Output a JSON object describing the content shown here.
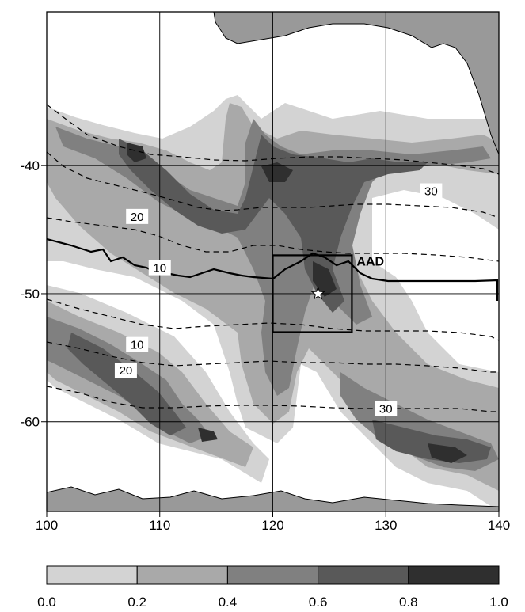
{
  "map": {
    "lon_range": [
      100,
      140
    ],
    "lat_range": [
      -67,
      -28
    ],
    "lon_ticks": [
      {
        "value": 100,
        "label": "100"
      },
      {
        "value": 110,
        "label": "110"
      },
      {
        "value": 120,
        "label": "120"
      },
      {
        "value": 130,
        "label": "130"
      },
      {
        "value": 140,
        "label": "140"
      }
    ],
    "lat_ticks": [
      {
        "value": -40,
        "label": "-40"
      },
      {
        "value": -50,
        "label": "-50"
      },
      {
        "value": -60,
        "label": "-60"
      }
    ],
    "grid": true,
    "land_color": "#999999",
    "front_line_color": "#000000",
    "box": {
      "label": "AAD",
      "lon_min": 120,
      "lon_max": 127,
      "lat_min": -53,
      "lat_max": -47
    },
    "star": {
      "lon": 124,
      "lat": -50
    },
    "contours": [
      {
        "label": "30",
        "label_lon": 134,
        "label_lat": -42
      },
      {
        "label": "20",
        "label_lon": 108,
        "label_lat": -44
      },
      {
        "label": "10",
        "label_lon": 110,
        "label_lat": -48
      },
      {
        "label": "10",
        "label_lon": 108,
        "label_lat": -54
      },
      {
        "label": "20",
        "label_lon": 107,
        "label_lat": -56
      },
      {
        "label": "30",
        "label_lon": 130,
        "label_lat": -59
      }
    ]
  },
  "colorbar": {
    "bins": [
      {
        "color": "#d3d3d3"
      },
      {
        "color": "#a9a9a9"
      },
      {
        "color": "#808080"
      },
      {
        "color": "#595959"
      },
      {
        "color": "#2f2f2f"
      }
    ],
    "tick_labels": [
      "0.0",
      "0.2",
      "0.4",
      "0.6",
      "0.8",
      "1.0"
    ]
  }
}
